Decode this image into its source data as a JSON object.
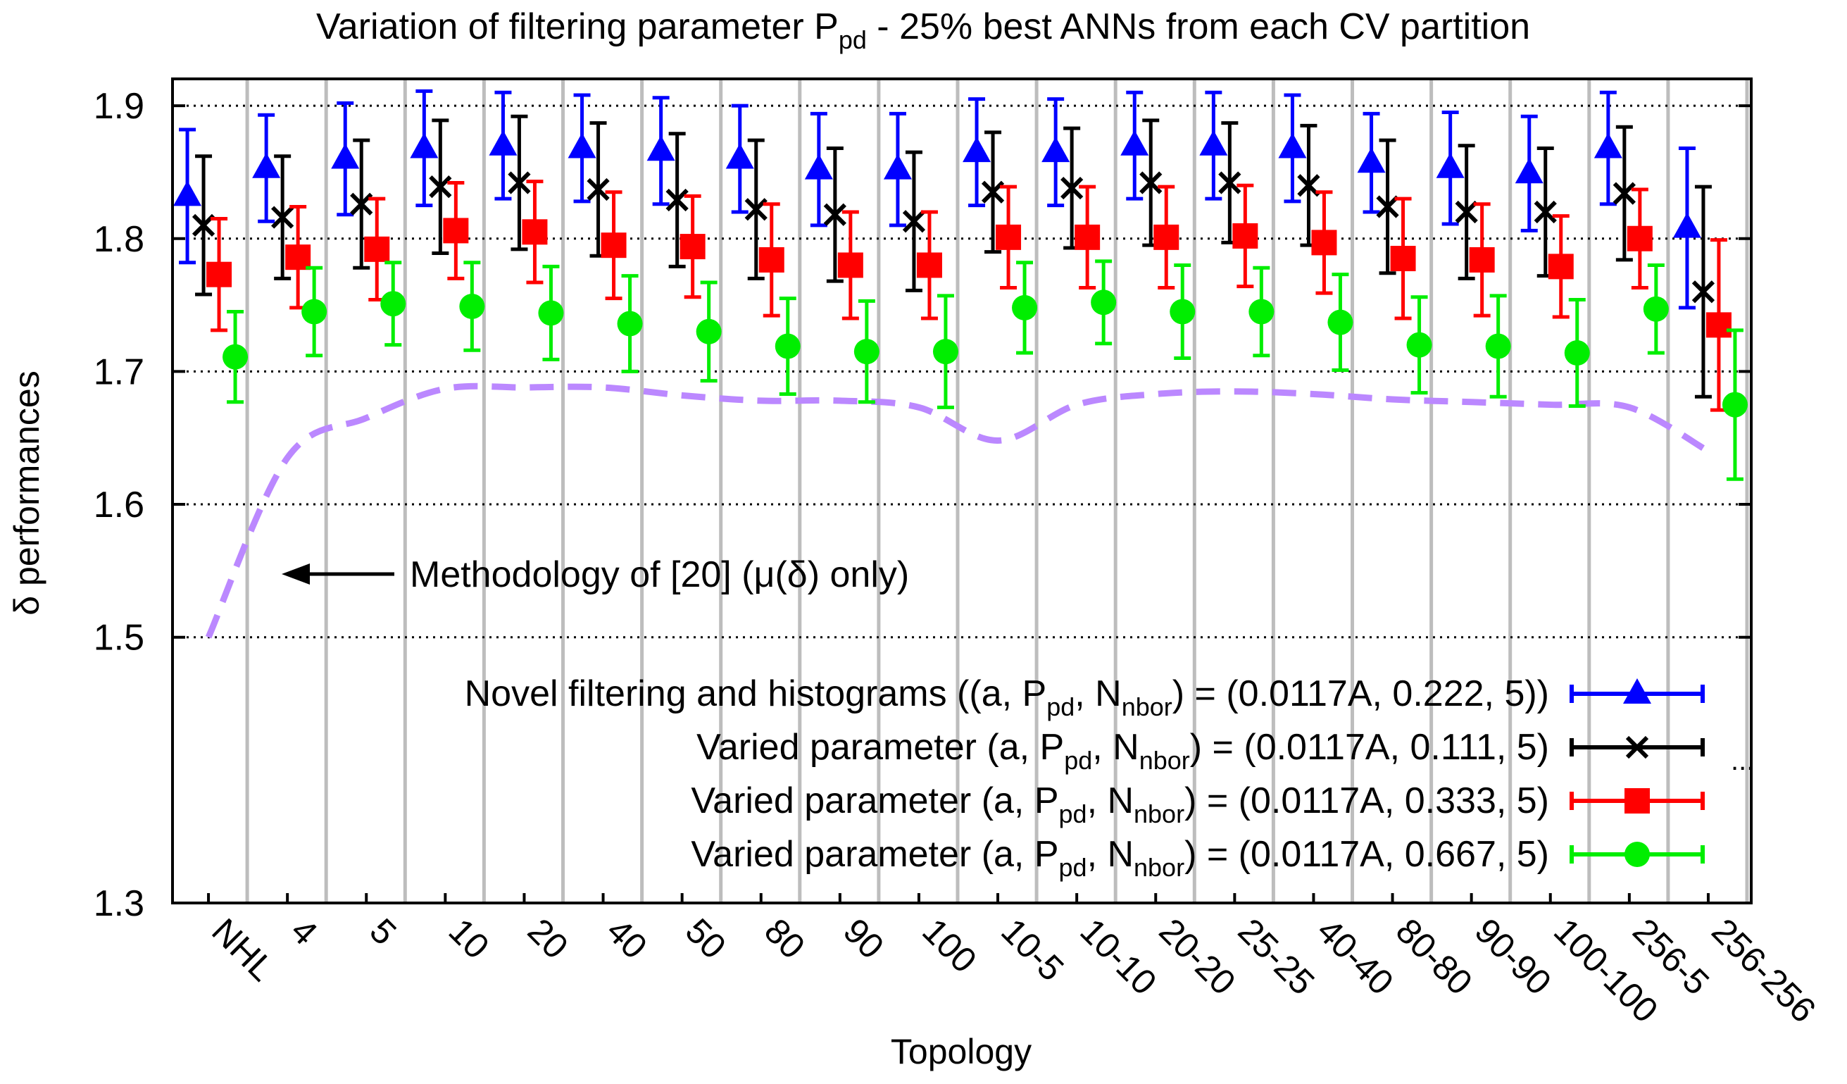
{
  "chart_data": {
    "type": "scatter",
    "title_main": "Variation of filtering parameter P",
    "title_sub": "pd",
    "title_rest": " - 25% best ANNs from each CV partition",
    "xlabel": "Topology",
    "ylabel": "δ performances",
    "ylim": [
      1.3,
      1.92
    ],
    "yticks": [
      "1.3",
      "1.5",
      "1.6",
      "1.7",
      "1.8",
      "1.9"
    ],
    "grid": true,
    "categories": [
      "NHL",
      "4",
      "5",
      "10",
      "20",
      "40",
      "50",
      "80",
      "90",
      "100",
      "10-5",
      "10-10",
      "20-20",
      "25-25",
      "40-40",
      "80-80",
      "90-90",
      "100-100",
      "256-5",
      "256-256"
    ],
    "series": [
      {
        "name": "Novel filtering and histograms",
        "label": [
          "Novel filtering and histograms ((a, P",
          "pd",
          ", N",
          "nbor",
          ") = (0.0117A, 0.222, 5))"
        ],
        "color": "#0000ff",
        "marker": "triangle",
        "values": [
          1.832,
          1.853,
          1.86,
          1.868,
          1.87,
          1.868,
          1.866,
          1.86,
          1.852,
          1.852,
          1.865,
          1.865,
          1.87,
          1.87,
          1.868,
          1.857,
          1.853,
          1.849,
          1.868,
          1.808
        ],
        "err": [
          0.05,
          0.04,
          0.042,
          0.043,
          0.04,
          0.04,
          0.04,
          0.04,
          0.042,
          0.042,
          0.04,
          0.04,
          0.04,
          0.04,
          0.04,
          0.037,
          0.042,
          0.043,
          0.042,
          0.06
        ]
      },
      {
        "name": "Varied parameter 0.111",
        "label": [
          "Varied parameter (a, P",
          "pd",
          ", N",
          "nbor",
          ") = (0.0117A, 0.111, 5)"
        ],
        "color": "#000000",
        "marker": "cross",
        "values": [
          1.81,
          1.816,
          1.826,
          1.839,
          1.842,
          1.837,
          1.829,
          1.822,
          1.818,
          1.813,
          1.835,
          1.838,
          1.842,
          1.842,
          1.84,
          1.824,
          1.82,
          1.82,
          1.834,
          1.76
        ],
        "err": [
          0.052,
          0.046,
          0.048,
          0.05,
          0.05,
          0.05,
          0.05,
          0.052,
          0.05,
          0.052,
          0.045,
          0.045,
          0.047,
          0.045,
          0.045,
          0.05,
          0.05,
          0.048,
          0.05,
          0.079
        ]
      },
      {
        "name": "Varied parameter 0.333",
        "label": [
          "Varied parameter (a, P",
          "pd",
          ", N",
          "nbor",
          ") = (0.0117A, 0.333, 5)"
        ],
        "color": "#ff0000",
        "marker": "square",
        "values": [
          1.773,
          1.786,
          1.792,
          1.806,
          1.805,
          1.795,
          1.794,
          1.784,
          1.78,
          1.78,
          1.801,
          1.801,
          1.801,
          1.802,
          1.797,
          1.785,
          1.784,
          1.779,
          1.8,
          1.735
        ],
        "err": [
          0.042,
          0.038,
          0.038,
          0.036,
          0.038,
          0.04,
          0.038,
          0.042,
          0.04,
          0.04,
          0.038,
          0.038,
          0.038,
          0.038,
          0.038,
          0.045,
          0.042,
          0.038,
          0.037,
          0.064
        ]
      },
      {
        "name": "Varied parameter 0.667",
        "label": [
          "Varied parameter (a, P",
          "pd",
          ", N",
          "nbor",
          ") = (0.0117A, 0.667, 5)"
        ],
        "color": "#00ee00",
        "marker": "circle",
        "values": [
          1.711,
          1.745,
          1.751,
          1.749,
          1.744,
          1.736,
          1.73,
          1.719,
          1.715,
          1.715,
          1.748,
          1.752,
          1.745,
          1.745,
          1.737,
          1.72,
          1.719,
          1.714,
          1.747,
          1.675
        ],
        "err": [
          0.034,
          0.033,
          0.031,
          0.033,
          0.035,
          0.036,
          0.037,
          0.036,
          0.038,
          0.042,
          0.034,
          0.031,
          0.035,
          0.033,
          0.036,
          0.036,
          0.038,
          0.04,
          0.033,
          0.056
        ]
      }
    ],
    "reference_line": {
      "name": "Methodology of [20]",
      "color": "#bb88ff",
      "style": "dashed",
      "values": [
        1.5,
        1.635,
        1.665,
        1.687,
        1.688,
        1.688,
        1.682,
        1.678,
        1.678,
        1.673,
        1.648,
        1.675,
        1.683,
        1.685,
        1.683,
        1.679,
        1.677,
        1.675,
        1.673,
        1.64
      ]
    },
    "annotation": "Methodology of [20] (μ(δ) only)",
    "legend_extra": "...",
    "legend_position": "bottom-right"
  }
}
